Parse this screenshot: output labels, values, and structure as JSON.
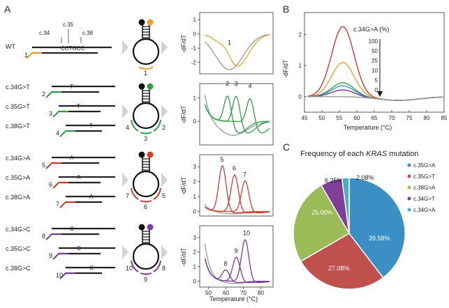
{
  "panels": {
    "a": "A",
    "b": "B",
    "c": "C"
  },
  "colors": {
    "orange": "#f0a030",
    "green": "#2ea043",
    "red": "#d43a2a",
    "purple": "#7b3b9a",
    "gray": "#999999",
    "blue": "#3b8fc4",
    "pie_red": "#c0504d",
    "pie_green": "#9bbb59",
    "pie_purple": "#7f3f98",
    "pie_cyan": "#4bacc6"
  },
  "panel_a": {
    "wt": {
      "label": "WT",
      "positions": [
        "c.35",
        "c.34",
        "c.38"
      ],
      "sequence": "CCTGCC",
      "probe_num": "1",
      "loop_num": "1"
    },
    "groups": [
      {
        "mutations": [
          "c.34G>T",
          "c.35G>T",
          "c.38G>T"
        ],
        "base": "T",
        "nums": [
          "2",
          "3",
          "4"
        ],
        "loop_nums": [
          "4",
          "3",
          "2"
        ],
        "yticks": [
          "1",
          "0"
        ]
      },
      {
        "mutations": [
          "c.34G>A",
          "c.35G>A",
          "c.38G>A"
        ],
        "base": "A",
        "nums": [
          "5",
          "6",
          "7"
        ],
        "loop_nums": [
          "7",
          "6",
          "5"
        ],
        "yticks": [
          "3",
          "2",
          "1",
          "0"
        ]
      },
      {
        "mutations": [
          "c.34G>C",
          "c.35G>C",
          "c.38G>C"
        ],
        "base": "C",
        "nums": [
          "8",
          "9",
          "10"
        ],
        "loop_nums": [
          "10",
          "9",
          "8"
        ],
        "yticks": [
          "3",
          "2",
          "1",
          "0"
        ]
      }
    ],
    "wt_yticks": [
      "1",
      "0",
      "-1",
      "-2"
    ],
    "ylabel": "-dF/dT",
    "xticks": [
      "50",
      "60",
      "70",
      "80"
    ],
    "xlabel": "Temperature (°C)"
  },
  "panel_b": {
    "chart_data": {
      "type": "line",
      "title": "",
      "annotation": "c.34G>A (%)",
      "levels": [
        "100",
        "50",
        "25",
        "10",
        "5",
        "0"
      ],
      "xlabel": "Temperature (°C)",
      "ylabel": "-dF/dT",
      "xlim": [
        45,
        85
      ],
      "ylim": [
        -0.5,
        2.7
      ],
      "xticks": [
        "45",
        "50",
        "55",
        "60",
        "65",
        "70",
        "75",
        "80",
        "85"
      ],
      "yticks": [
        "2",
        "1",
        "0"
      ],
      "series": [
        {
          "name": "100",
          "color": "#d43a2a",
          "peak": 2.25
        },
        {
          "name": "50",
          "color": "#f0a030",
          "peak": 1.1
        },
        {
          "name": "25",
          "color": "#2ea043",
          "peak": 0.45
        },
        {
          "name": "10",
          "color": "#3b8fc4",
          "peak": 0.35
        },
        {
          "name": "5",
          "color": "#7b3b9a",
          "peak": 0.22
        },
        {
          "name": "0",
          "color": "#999999",
          "peak": 0.0
        }
      ]
    }
  },
  "panel_c": {
    "chart_data": {
      "type": "pie",
      "title_pre": "Frequency of each ",
      "title_em": "KRAS",
      "title_post": " mutation",
      "slices": [
        {
          "label": "c.35G>A",
          "value": 39.58,
          "text": "39.58%",
          "color": "#3b8fc4"
        },
        {
          "label": "c.35G>T",
          "value": 27.08,
          "text": "27.08%",
          "color": "#c0504d"
        },
        {
          "label": "c.38G>A",
          "value": 25.0,
          "text": "25.00%",
          "color": "#9bbb59"
        },
        {
          "label": "c.34G>T",
          "value": 6.25,
          "text": "6.25%",
          "color": "#7f3f98"
        },
        {
          "label": "c.34G>A",
          "value": 2.08,
          "text": "2.08%",
          "color": "#4bacc6"
        }
      ]
    }
  }
}
